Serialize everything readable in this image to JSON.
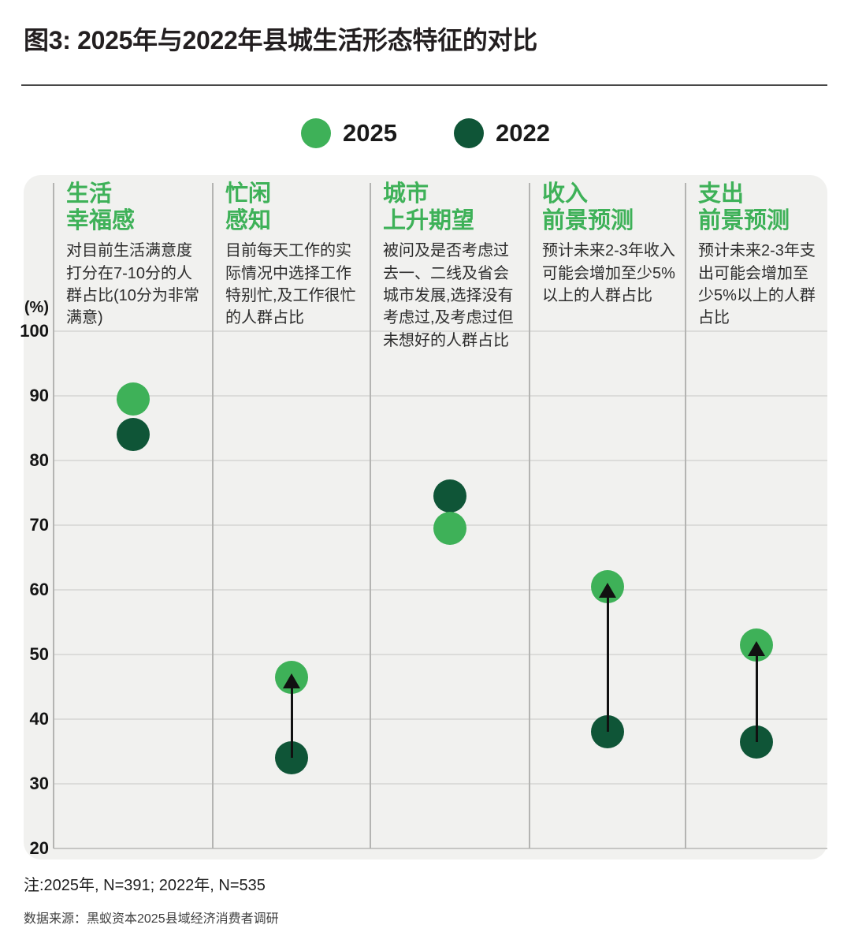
{
  "page": {
    "title": "图3: 2025年与2022年县城生活形态特征的对比",
    "note": "注:2025年, N=391; 2022年, N=535",
    "source": "数据来源：黑蚁资本2025县域经济消费者调研"
  },
  "colors": {
    "green_2025": "#3eb158",
    "green_2022": "#0f5537",
    "header_green": "#3eb158",
    "panel_bg": "#f1f1ef",
    "arrow": "#111111"
  },
  "chart_data": {
    "type": "scatter",
    "variant": "dumbbell-dot-plot",
    "title": "图3: 2025年与2022年县城生活形态特征的对比",
    "ylabel": "(%)",
    "ylim": [
      20,
      100
    ],
    "yticks": [
      100,
      90,
      80,
      70,
      60,
      50,
      40,
      30,
      20
    ],
    "grid": true,
    "legend_position": "top-center",
    "categories": [
      {
        "title_lines": [
          "生活",
          "幸福感"
        ],
        "description": "对目前生活满意度打分在7-10分的人群占比(10分为非常满意)"
      },
      {
        "title_lines": [
          "忙闲",
          "感知"
        ],
        "description": "目前每天工作的实际情况中选择工作特别忙,及工作很忙的人群占比"
      },
      {
        "title_lines": [
          "城市",
          "上升期望"
        ],
        "description": "被问及是否考虑过去一、二线及省会城市发展,选择没有考虑过,及考虑过但未想好的人群占比"
      },
      {
        "title_lines": [
          "收入",
          "前景预测"
        ],
        "description": "预计未来2-3年收入可能会增加至少5%以上的人群占比"
      },
      {
        "title_lines": [
          "支出",
          "前景预测"
        ],
        "description": "预计未来2-3年支出可能会增加至少5%以上的人群占比"
      }
    ],
    "series": [
      {
        "name": "2025",
        "color": "#3eb158",
        "values": [
          89.5,
          46.5,
          69.5,
          60.5,
          51.5
        ]
      },
      {
        "name": "2022",
        "color": "#0f5537",
        "values": [
          84,
          34,
          74.5,
          38,
          36.5
        ]
      }
    ],
    "change_arrows": [
      false,
      true,
      false,
      true,
      true
    ]
  }
}
